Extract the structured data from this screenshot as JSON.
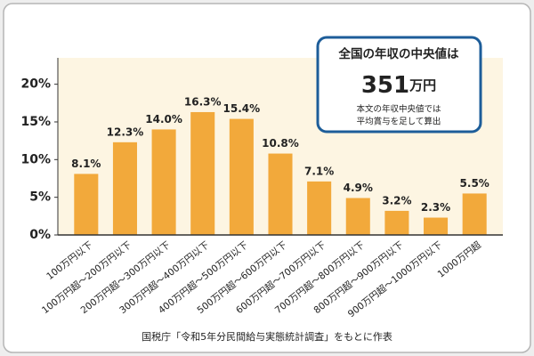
{
  "chart_data": {
    "type": "bar",
    "categories": [
      "100万円以下",
      "100万円超～200万円以下",
      "200万円超～300万円以下",
      "300万円超～400万円以下",
      "400万円超～500万円以下",
      "500万円超～600万円以下",
      "600万円超～700万円以下",
      "700万円超～800万円以下",
      "800万円超～900万円以下",
      "900万円超～1000万円以下",
      "1000万円超"
    ],
    "values": [
      8.1,
      12.3,
      14.0,
      16.3,
      15.4,
      10.8,
      7.1,
      4.9,
      3.2,
      2.3,
      5.5
    ],
    "value_labels": [
      "8.1%",
      "12.3%",
      "14.0%",
      "16.3%",
      "15.4%",
      "10.8%",
      "7.1%",
      "4.9%",
      "3.2%",
      "2.3%",
      "5.5%"
    ],
    "color": "#f2a93b",
    "ylim": [
      0,
      23.5
    ],
    "yticks": [
      {
        "value": 0,
        "label": "0%"
      },
      {
        "value": 5,
        "label": "5%"
      },
      {
        "value": 10,
        "label": "10%"
      },
      {
        "value": 15,
        "label": "15%"
      },
      {
        "value": 20,
        "label": "20%"
      }
    ],
    "grid": false,
    "callout": {
      "title": "全国の年収の中央値は",
      "value": "351",
      "unit": "万円",
      "note": [
        "本文の年収中央値では",
        "平均賞与を足して算出"
      ]
    },
    "source": "国税庁「令和5年分民間給与実態統計調査」をもとに作表"
  }
}
